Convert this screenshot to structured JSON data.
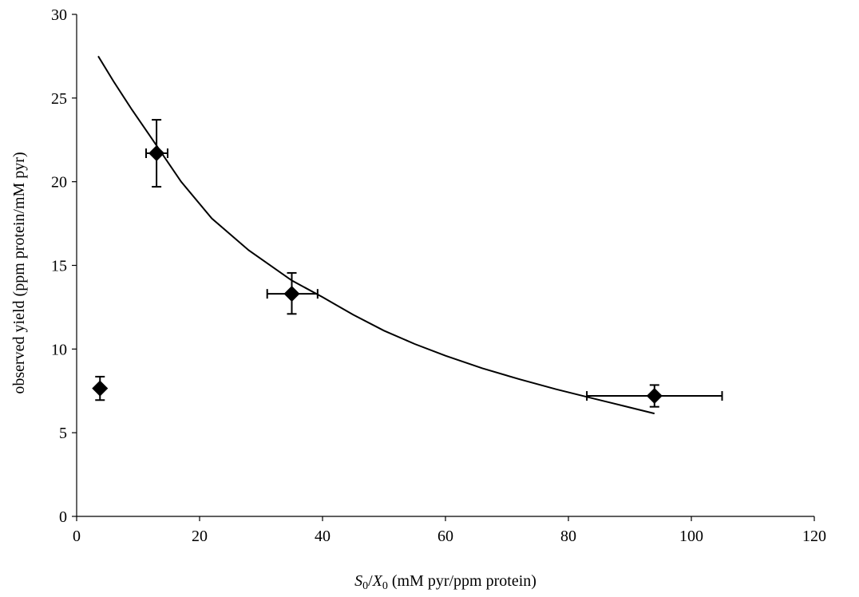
{
  "chart_data": {
    "type": "scatter",
    "title": "",
    "ylabel": "observed yield (ppm protein/mM pyr)",
    "xlabel": {
      "s": "S",
      "s_sub": "0",
      "sep": "/",
      "x": "X",
      "x_sub": "0",
      "rest": " (mM pyr/ppm protein)"
    },
    "xlim": [
      0,
      120
    ],
    "ylim": [
      0,
      30
    ],
    "x_ticks": [
      0,
      20,
      40,
      60,
      80,
      100,
      120
    ],
    "y_ticks": [
      0,
      5,
      10,
      15,
      20,
      25,
      30
    ],
    "grid": false,
    "legend": "none",
    "series": [
      {
        "type": "scatter",
        "marker": "diamond",
        "points": [
          {
            "x": 3.8,
            "y": 7.65,
            "xerr": [
              3.8,
              3.8
            ],
            "yerr": [
              6.95,
              8.35
            ]
          },
          {
            "x": 13,
            "y": 21.7,
            "xerr": [
              11.3,
              14.8
            ],
            "yerr": [
              19.7,
              23.7
            ]
          },
          {
            "x": 35,
            "y": 13.3,
            "xerr": [
              31,
              39.2
            ],
            "yerr": [
              12.1,
              14.55
            ]
          },
          {
            "x": 94,
            "y": 7.2,
            "xerr": [
              83,
              105
            ],
            "yerr": [
              6.55,
              7.85
            ]
          }
        ]
      },
      {
        "type": "line",
        "points": [
          {
            "x": 3.5,
            "y": 27.5
          },
          {
            "x": 6,
            "y": 26
          },
          {
            "x": 9,
            "y": 24.3
          },
          {
            "x": 12,
            "y": 22.7
          },
          {
            "x": 17,
            "y": 20
          },
          {
            "x": 22,
            "y": 17.8
          },
          {
            "x": 28,
            "y": 15.9
          },
          {
            "x": 35,
            "y": 14.1
          },
          {
            "x": 40,
            "y": 13.1
          },
          {
            "x": 45,
            "y": 12.05
          },
          {
            "x": 50,
            "y": 11.1
          },
          {
            "x": 55,
            "y": 10.3
          },
          {
            "x": 60,
            "y": 9.6
          },
          {
            "x": 66,
            "y": 8.85
          },
          {
            "x": 72,
            "y": 8.2
          },
          {
            "x": 78,
            "y": 7.6
          },
          {
            "x": 84,
            "y": 7.05
          },
          {
            "x": 89,
            "y": 6.6
          },
          {
            "x": 94,
            "y": 6.15
          }
        ]
      }
    ]
  }
}
